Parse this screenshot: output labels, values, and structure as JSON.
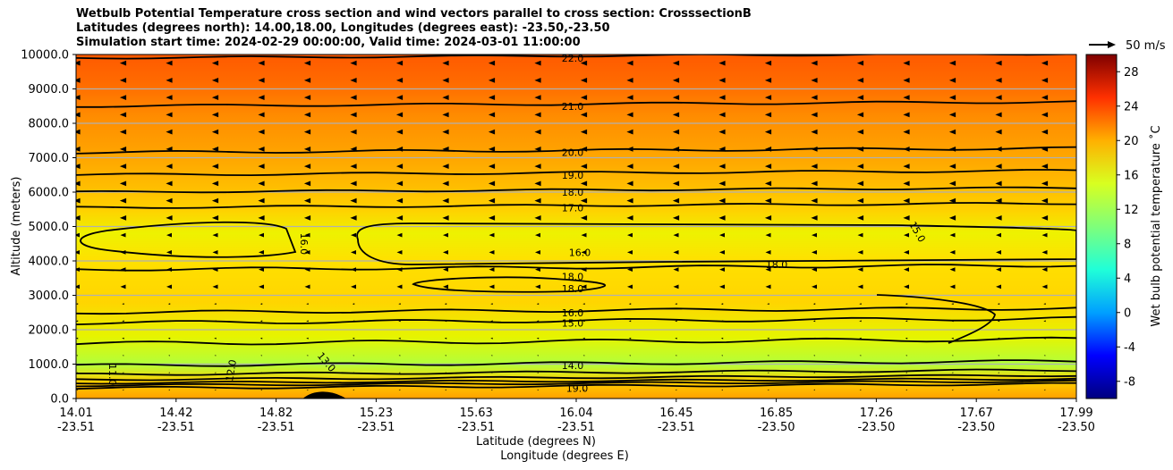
{
  "chart_data": {
    "type": "heatmap",
    "title_lines": [
      "Wetbulb Potential Temperature cross section and wind vectors parallel to cross section: CrosssectionB",
      "Latitudes (degrees north): 14.00,18.00, Longitudes (degrees east): -23.50,-23.50",
      "Simulation start time: 2024-02-29 00:00:00, Valid time: 2024-03-01 11:00:00"
    ],
    "ylabel": "Altitude (meters)",
    "xlabel_lat": "Latitude (degrees N)",
    "xlabel_lon": "Longitude (degrees E)",
    "ylim": [
      0,
      10000
    ],
    "y_ticks": [
      "0.0",
      "1000.0",
      "2000.0",
      "3000.0",
      "4000.0",
      "5000.0",
      "6000.0",
      "7000.0",
      "8000.0",
      "9000.0",
      "10000.0"
    ],
    "x_ticks": [
      {
        "lat": "14.01",
        "lon": "-23.51"
      },
      {
        "lat": "14.42",
        "lon": "-23.51"
      },
      {
        "lat": "14.82",
        "lon": "-23.51"
      },
      {
        "lat": "15.23",
        "lon": "-23.51"
      },
      {
        "lat": "15.63",
        "lon": "-23.51"
      },
      {
        "lat": "16.04",
        "lon": "-23.51"
      },
      {
        "lat": "16.45",
        "lon": "-23.51"
      },
      {
        "lat": "16.85",
        "lon": "-23.50"
      },
      {
        "lat": "17.26",
        "lon": "-23.50"
      },
      {
        "lat": "17.67",
        "lon": "-23.50"
      },
      {
        "lat": "17.99",
        "lon": "-23.50"
      }
    ],
    "colorbar": {
      "label": "Wet bulb potential temperature ˚C",
      "range": [
        -10,
        30
      ],
      "ticks": [
        "-8",
        "-4",
        "0",
        "4",
        "8",
        "12",
        "16",
        "20",
        "24",
        "28"
      ]
    },
    "wind_key": "50 m/s",
    "contour_labels": [
      {
        "text": "22.0",
        "alt": 9900
      },
      {
        "text": "21.0",
        "alt": 8500
      },
      {
        "text": "20.0",
        "alt": 7150
      },
      {
        "text": "19.0",
        "alt": 6500
      },
      {
        "text": "18.0",
        "alt": 6000
      },
      {
        "text": "17.0",
        "alt": 5550
      },
      {
        "text": "16.0",
        "alt": 4250
      },
      {
        "text": "18.0",
        "alt": 3550
      },
      {
        "text": "18.0",
        "alt": 3200
      },
      {
        "text": "16.0",
        "alt": 2500
      },
      {
        "text": "15.0",
        "alt": 2200
      },
      {
        "text": "14.0",
        "alt": 960
      },
      {
        "text": "19.0",
        "alt": 300
      },
      {
        "text": "15.0",
        "alt": 4900
      },
      {
        "text": "18.0",
        "alt": 3900
      },
      {
        "text": "16.0",
        "alt": 4600
      },
      {
        "text": "12.0",
        "alt": 900
      },
      {
        "text": "13.0",
        "alt": 1100
      },
      {
        "text": "11.0",
        "alt": 800
      }
    ]
  }
}
